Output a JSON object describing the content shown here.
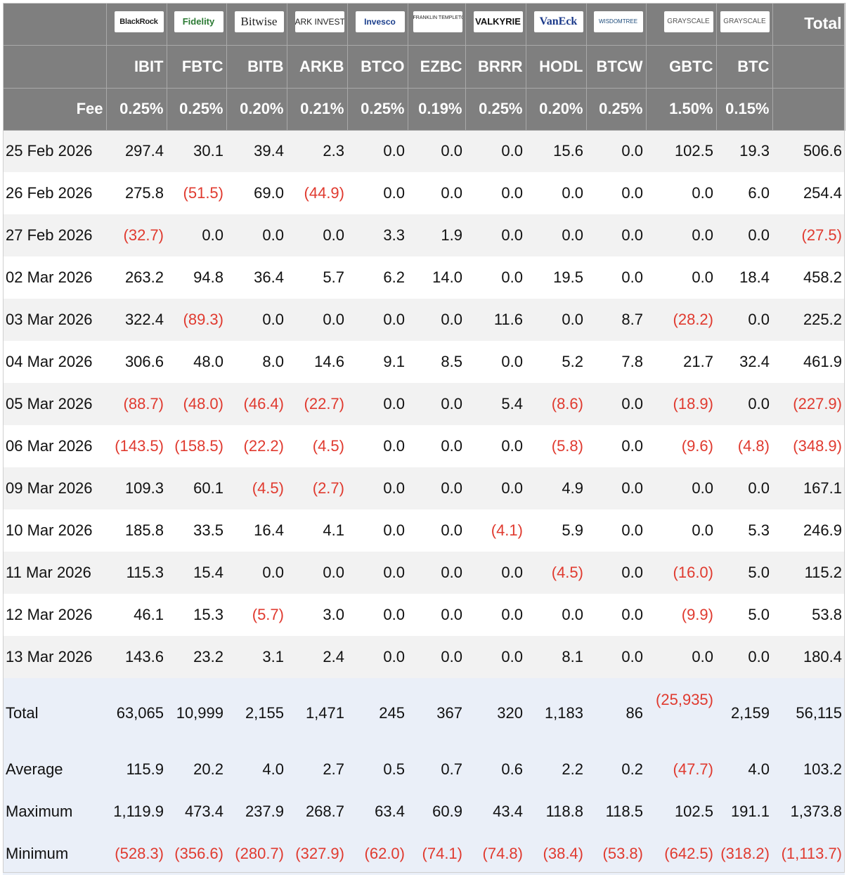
{
  "header": {
    "total_label": "Total",
    "fee_label": "Fee",
    "logos": [
      {
        "name": "blackrock-logo",
        "text": "BlackRock",
        "cls": "blackrock"
      },
      {
        "name": "fidelity-logo",
        "text": "Fidelity",
        "cls": "fidelity"
      },
      {
        "name": "bitwise-logo",
        "text": "Bitwise",
        "cls": "bitwise"
      },
      {
        "name": "ark-invest-logo",
        "text": "ARK INVEST",
        "cls": "ark"
      },
      {
        "name": "invesco-logo",
        "text": "Invesco",
        "cls": "invesco"
      },
      {
        "name": "franklin-templeton-logo",
        "text": "FRANKLIN TEMPLETON",
        "cls": "franklin"
      },
      {
        "name": "valkyrie-logo",
        "text": "VALKYRIE",
        "cls": "valkyrie"
      },
      {
        "name": "vaneck-logo",
        "text": "VanEck",
        "cls": "vaneck"
      },
      {
        "name": "wisdomtree-logo",
        "text": "WISDOMTREE",
        "cls": "wisdomtree"
      },
      {
        "name": "grayscale-logo",
        "text": "GRAYSCALE",
        "cls": "grayscale"
      },
      {
        "name": "grayscale-mini-logo",
        "text": "GRAYSCALE",
        "cls": "grayscale"
      }
    ],
    "tickers": [
      "IBIT",
      "FBTC",
      "BITB",
      "ARKB",
      "BTCO",
      "EZBC",
      "BRRR",
      "HODL",
      "BTCW",
      "GBTC",
      "BTC"
    ],
    "fees": [
      "0.25%",
      "0.25%",
      "0.20%",
      "0.21%",
      "0.25%",
      "0.19%",
      "0.25%",
      "0.20%",
      "0.25%",
      "1.50%",
      "0.15%"
    ]
  },
  "rows": [
    {
      "date": "25 Feb 2026",
      "values": [
        "297.4",
        "30.1",
        "39.4",
        "2.3",
        "0.0",
        "0.0",
        "0.0",
        "15.6",
        "0.0",
        "102.5",
        "19.3"
      ],
      "total": "506.6"
    },
    {
      "date": "26 Feb 2026",
      "values": [
        "275.8",
        "(51.5)",
        "69.0",
        "(44.9)",
        "0.0",
        "0.0",
        "0.0",
        "0.0",
        "0.0",
        "0.0",
        "6.0"
      ],
      "total": "254.4"
    },
    {
      "date": "27 Feb 2026",
      "values": [
        "(32.7)",
        "0.0",
        "0.0",
        "0.0",
        "3.3",
        "1.9",
        "0.0",
        "0.0",
        "0.0",
        "0.0",
        "0.0"
      ],
      "total": "(27.5)"
    },
    {
      "date": "02 Mar 2026",
      "values": [
        "263.2",
        "94.8",
        "36.4",
        "5.7",
        "6.2",
        "14.0",
        "0.0",
        "19.5",
        "0.0",
        "0.0",
        "18.4"
      ],
      "total": "458.2"
    },
    {
      "date": "03 Mar 2026",
      "values": [
        "322.4",
        "(89.3)",
        "0.0",
        "0.0",
        "0.0",
        "0.0",
        "11.6",
        "0.0",
        "8.7",
        "(28.2)",
        "0.0"
      ],
      "total": "225.2"
    },
    {
      "date": "04 Mar 2026",
      "values": [
        "306.6",
        "48.0",
        "8.0",
        "14.6",
        "9.1",
        "8.5",
        "0.0",
        "5.2",
        "7.8",
        "21.7",
        "32.4"
      ],
      "total": "461.9"
    },
    {
      "date": "05 Mar 2026",
      "values": [
        "(88.7)",
        "(48.0)",
        "(46.4)",
        "(22.7)",
        "0.0",
        "0.0",
        "5.4",
        "(8.6)",
        "0.0",
        "(18.9)",
        "0.0"
      ],
      "total": "(227.9)"
    },
    {
      "date": "06 Mar 2026",
      "values": [
        "(143.5)",
        "(158.5)",
        "(22.2)",
        "(4.5)",
        "0.0",
        "0.0",
        "0.0",
        "(5.8)",
        "0.0",
        "(9.6)",
        "(4.8)"
      ],
      "total": "(348.9)"
    },
    {
      "date": "09 Mar 2026",
      "values": [
        "109.3",
        "60.1",
        "(4.5)",
        "(2.7)",
        "0.0",
        "0.0",
        "0.0",
        "4.9",
        "0.0",
        "0.0",
        "0.0"
      ],
      "total": "167.1"
    },
    {
      "date": "10 Mar 2026",
      "values": [
        "185.8",
        "33.5",
        "16.4",
        "4.1",
        "0.0",
        "0.0",
        "(4.1)",
        "5.9",
        "0.0",
        "0.0",
        "5.3"
      ],
      "total": "246.9"
    },
    {
      "date": "11 Mar 2026",
      "values": [
        "115.3",
        "15.4",
        "0.0",
        "0.0",
        "0.0",
        "0.0",
        "0.0",
        "(4.5)",
        "0.0",
        "(16.0)",
        "5.0"
      ],
      "total": "115.2"
    },
    {
      "date": "12 Mar 2026",
      "values": [
        "46.1",
        "15.3",
        "(5.7)",
        "3.0",
        "0.0",
        "0.0",
        "0.0",
        "0.0",
        "0.0",
        "(9.9)",
        "5.0"
      ],
      "total": "53.8"
    },
    {
      "date": "13 Mar 2026",
      "values": [
        "143.6",
        "23.2",
        "3.1",
        "2.4",
        "0.0",
        "0.0",
        "0.0",
        "8.1",
        "0.0",
        "0.0",
        "0.0"
      ],
      "total": "180.4"
    }
  ],
  "summary": [
    {
      "label": "Total",
      "values": [
        "63,065",
        "10,999",
        "2,155",
        "1,471",
        "245",
        "367",
        "320",
        "1,183",
        "86",
        "(25,935)",
        "2,159"
      ],
      "total": "56,115",
      "key": "total"
    },
    {
      "label": "Average",
      "values": [
        "115.9",
        "20.2",
        "4.0",
        "2.7",
        "0.5",
        "0.7",
        "0.6",
        "2.2",
        "0.2",
        "(47.7)",
        "4.0"
      ],
      "total": "103.2",
      "key": "avg"
    },
    {
      "label": "Maximum",
      "values": [
        "1,119.9",
        "473.4",
        "237.9",
        "268.7",
        "63.4",
        "60.9",
        "43.4",
        "118.8",
        "118.5",
        "102.5",
        "191.1"
      ],
      "total": "1,373.8",
      "key": "max"
    },
    {
      "label": "Minimum",
      "values": [
        "(528.3)",
        "(356.6)",
        "(280.7)",
        "(327.9)",
        "(62.0)",
        "(74.1)",
        "(74.8)",
        "(38.4)",
        "(53.8)",
        "(642.5)",
        "(318.2)"
      ],
      "total": "(1,113.7)",
      "key": "min"
    }
  ],
  "colors": {
    "header_bg": "#7f7f7f",
    "negative": "#e03a2f",
    "summary_bg": "#eaeff8",
    "stripe": "#f2f2f2"
  }
}
